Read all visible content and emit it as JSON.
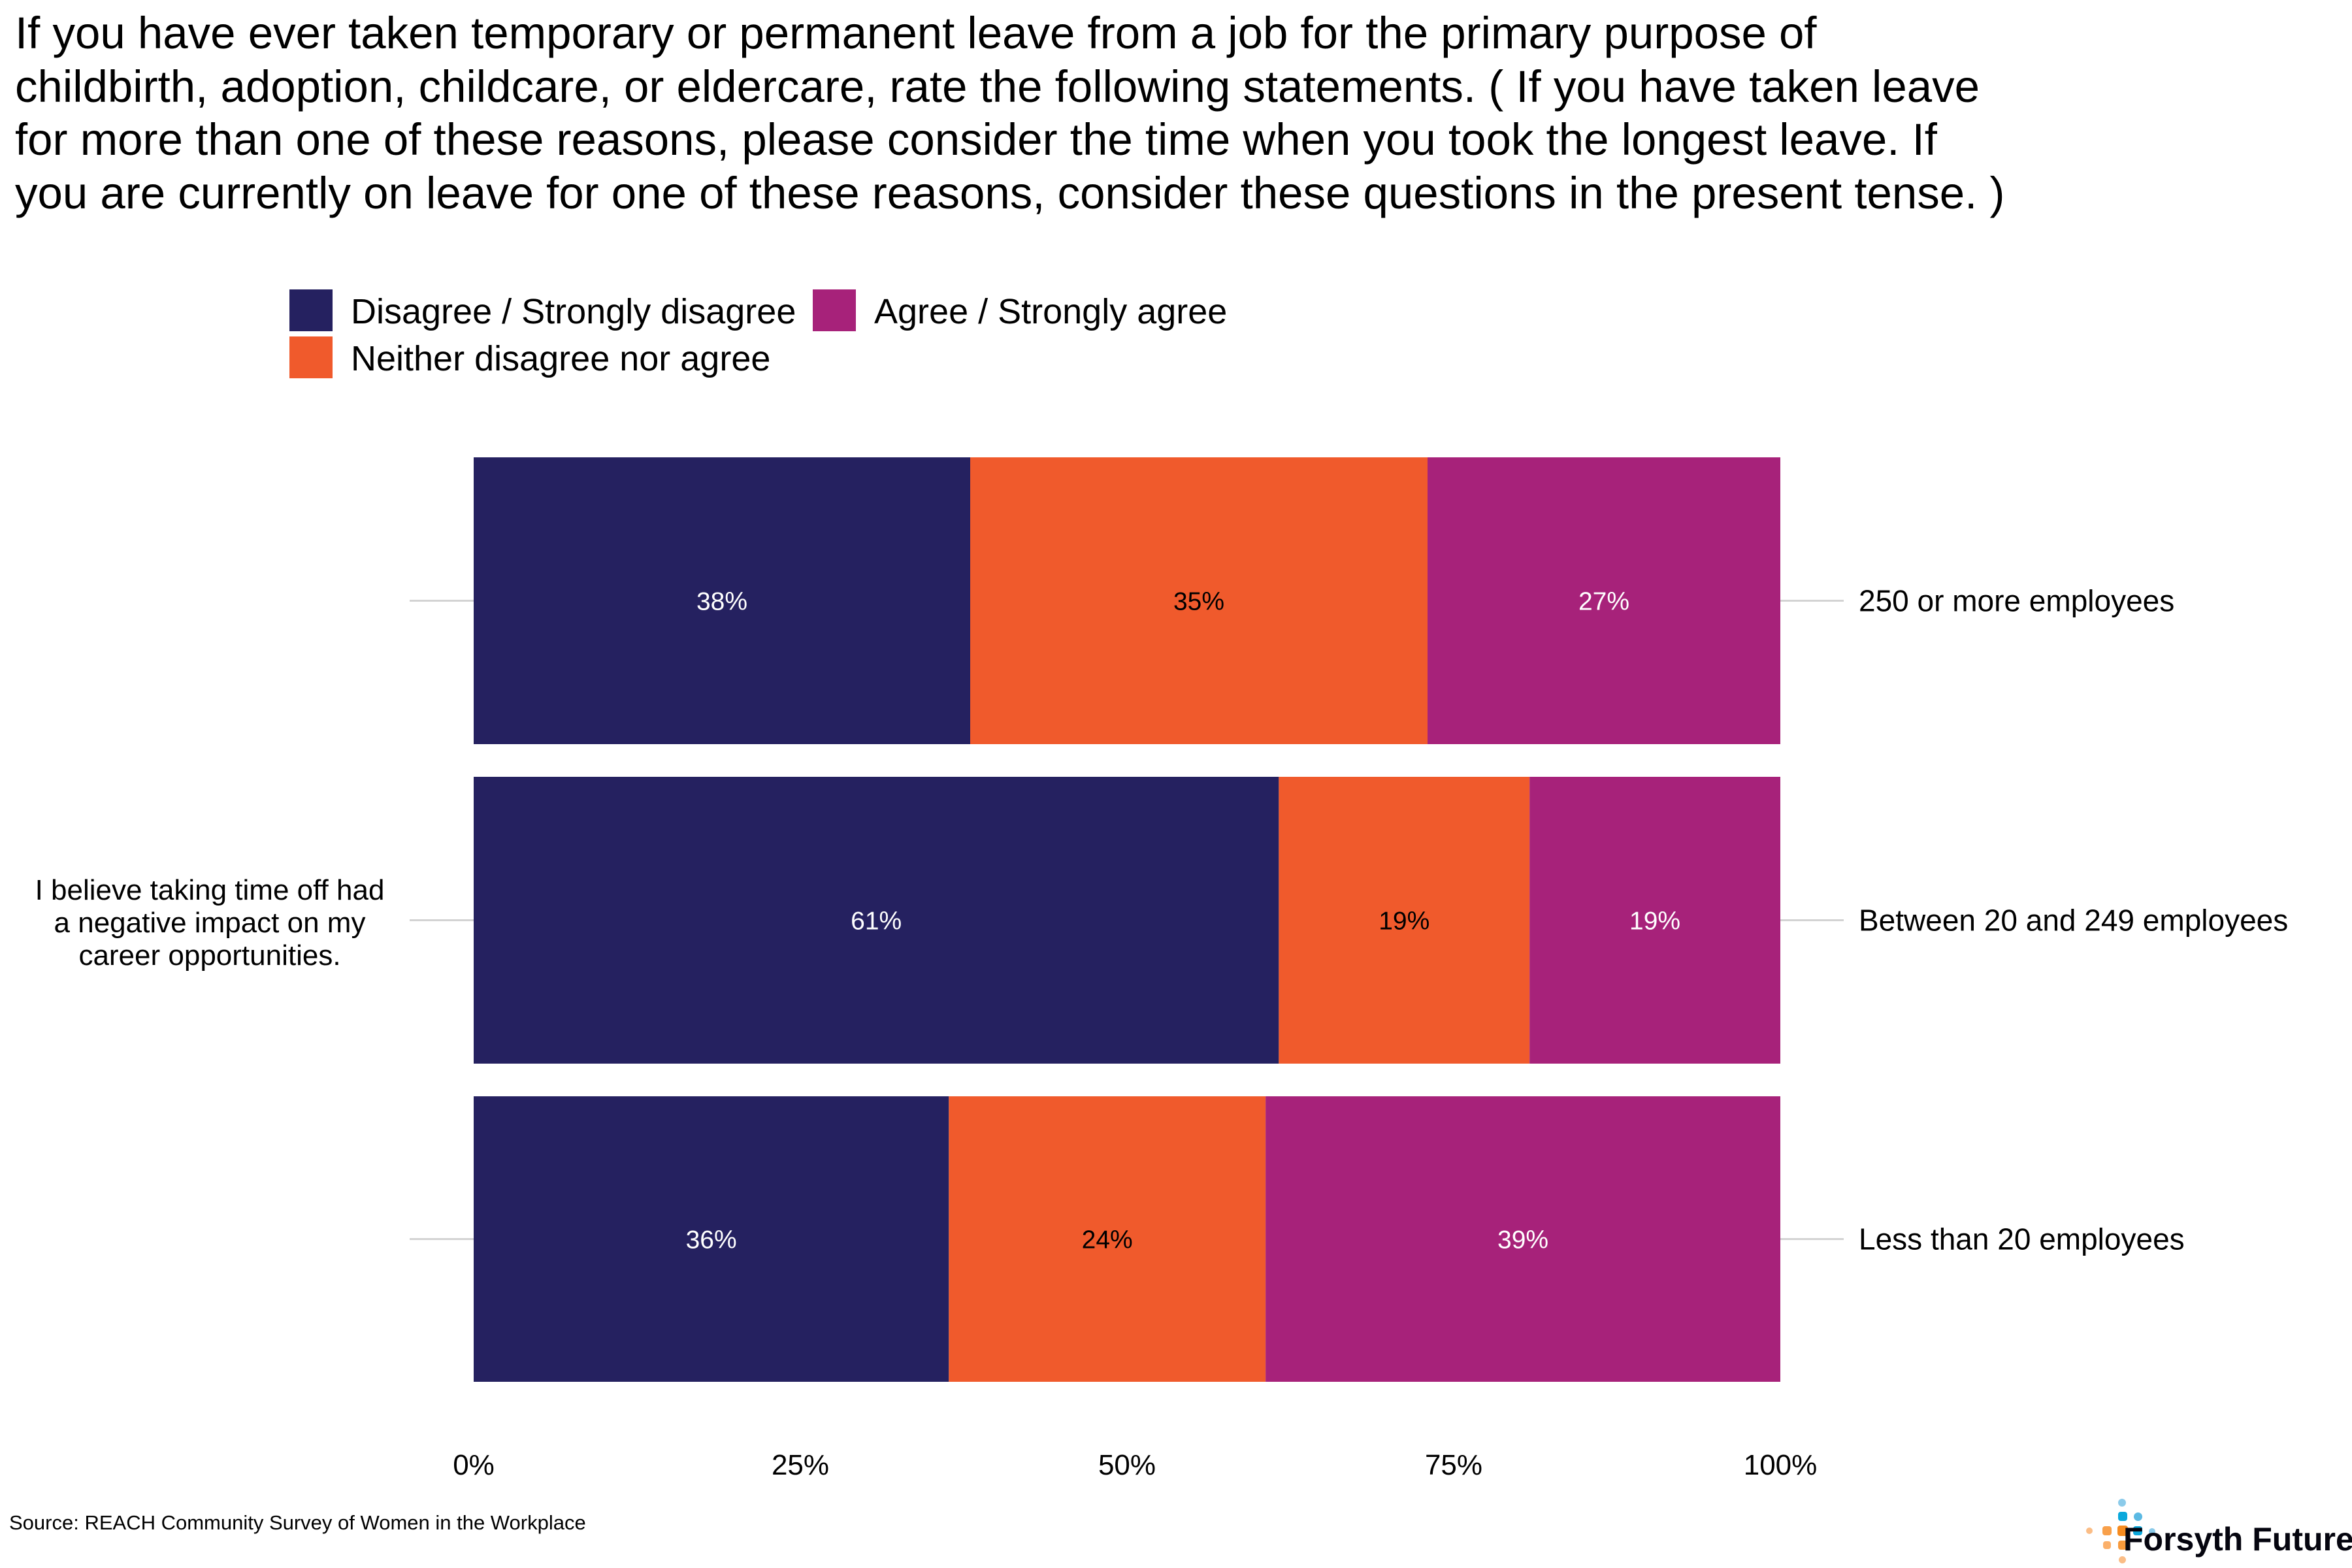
{
  "chart_data": {
    "type": "bar",
    "orientation": "horizontal",
    "stacked": "percent",
    "title": "If you have ever taken temporary or permanent leave from a job for the primary purpose of childbirth, adoption, childcare, or eldercare, rate the following statements. ( If you have taken leave for more than one of these reasons, please consider the time when you took the longest leave. If you are currently on leave for one of these reasons, consider these questions in the present tense. )",
    "statement": "I believe taking time off had a negative impact on my career opportunities.",
    "categories": [
      "250 or more employees",
      "Between 20 and 249 employees",
      "Less than 20 employees"
    ],
    "series": [
      {
        "name": "Disagree / Strongly disagree",
        "color": "#252160",
        "label_color": "#ffffff",
        "values": [
          38,
          61,
          36
        ]
      },
      {
        "name": "Neither disagree nor agree",
        "color": "#f05a2c",
        "label_color": "#000000",
        "values": [
          35,
          19,
          24
        ]
      },
      {
        "name": "Agree / Strongly agree",
        "color": "#a7227a",
        "label_color": "#ffffff",
        "values": [
          27,
          19,
          39
        ]
      }
    ],
    "legend_order": [
      0,
      2,
      1
    ],
    "legend_position": "top",
    "xlim": [
      0,
      100
    ],
    "x_ticks": [
      "0%",
      "25%",
      "50%",
      "75%",
      "100%"
    ],
    "grid": false
  },
  "source": "Source: REACH Community Survey of Women in the Workplace",
  "logo": {
    "text": "Forsyth Futures",
    "colors": [
      "#0aa8dc",
      "#f68b1f"
    ]
  }
}
